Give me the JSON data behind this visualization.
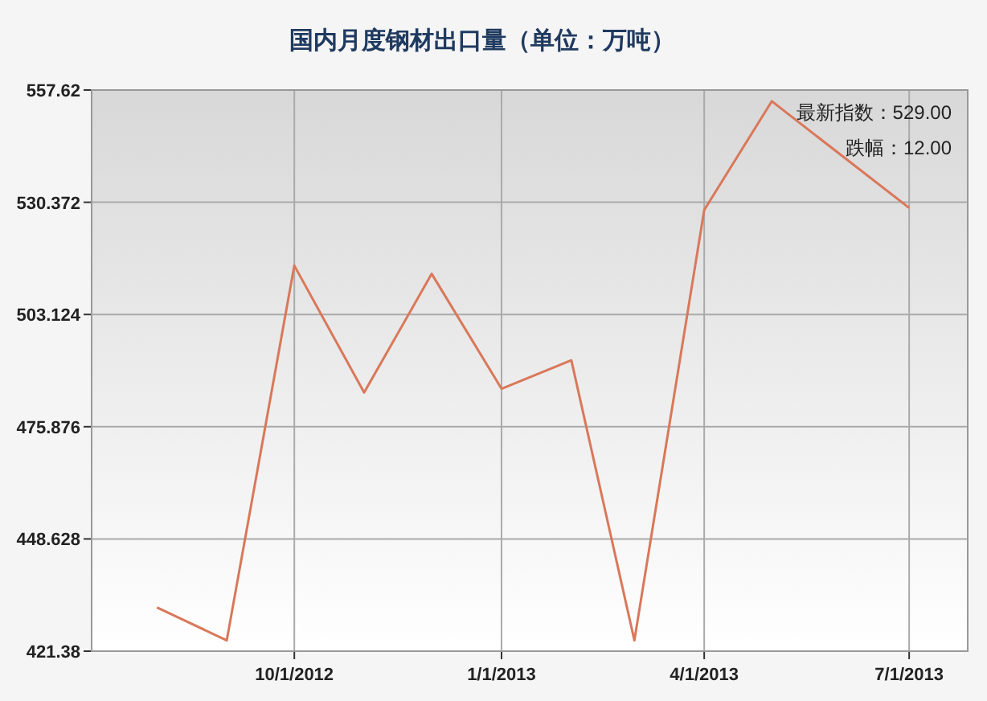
{
  "chart_data": {
    "type": "line",
    "title": "国内月度钢材出口量（单位：万吨）",
    "x": [
      "2012-08-01",
      "2012-09-01",
      "2012-10-01",
      "2012-11-01",
      "2012-12-01",
      "2013-01-01",
      "2013-02-01",
      "2013-03-01",
      "2013-04-01",
      "2013-05-01",
      "2013-07-01"
    ],
    "series": [
      {
        "color": "#d9785a",
        "values": [
          432.0,
          424.0,
          515.0,
          484.2,
          513.0,
          485.1,
          492.0,
          424.0,
          528.5,
          554.9,
          529.0
        ]
      }
    ],
    "xlim": [
      "2012-07-03",
      "2013-07-27"
    ],
    "xticks": [
      {
        "value": "2012-10-01",
        "label": "10/1/2012"
      },
      {
        "value": "2013-01-01",
        "label": "1/1/2013"
      },
      {
        "value": "2013-04-01",
        "label": "4/1/2013"
      },
      {
        "value": "2013-07-01",
        "label": "7/1/2013"
      }
    ],
    "ylim": [
      421.38,
      557.62
    ],
    "yticks": [
      421.38,
      448.628,
      475.876,
      503.124,
      530.372,
      557.62
    ],
    "grid": true,
    "marker": "none",
    "line_style": "solid",
    "annotations": [
      "最新指数：529.00",
      "跌幅：12.00"
    ]
  }
}
